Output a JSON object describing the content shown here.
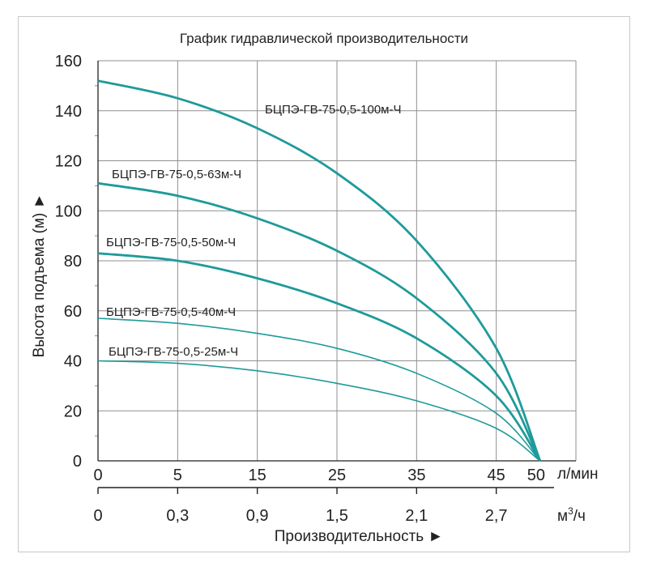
{
  "chart_data": {
    "type": "line",
    "title": "График гидравлической производительности",
    "ylabel": "Высота подъема (м) ►",
    "xlabel": "Производительность ►",
    "xunit_primary": "л/мин",
    "xunit_secondary_base": "м",
    "xunit_secondary_sup": "3",
    "xunit_secondary_tail": "/ч",
    "ylim": [
      0,
      160
    ],
    "yticks": [
      "160",
      "140",
      "120",
      "100",
      "80",
      "60",
      "40",
      "20",
      "0"
    ],
    "xlim": [
      0,
      55
    ],
    "xticks_primary": [
      "0",
      "5",
      "15",
      "25",
      "35",
      "45",
      "50"
    ],
    "xticks_primary_values": [
      0,
      10,
      20,
      30,
      40,
      50,
      55
    ],
    "xticks_secondary": [
      "0",
      "0,3",
      "0,9",
      "1,5",
      "2,1",
      "2,7"
    ],
    "grid": true,
    "series": [
      {
        "name": "БЦПЭ-ГВ-75-0,5-100м-Ч",
        "x": [
          0,
          10,
          20,
          30,
          40,
          50,
          55.5
        ],
        "y": [
          152,
          145,
          133,
          115,
          88,
          45,
          0
        ]
      },
      {
        "name": "БЦПЭ-ГВ-75-0,5-63м-Ч",
        "x": [
          0,
          10,
          20,
          30,
          40,
          50,
          55.5
        ],
        "y": [
          111,
          106,
          97,
          84,
          65,
          35,
          0
        ]
      },
      {
        "name": "БЦПЭ-ГВ-75-0,5-50м-Ч",
        "x": [
          0,
          10,
          20,
          30,
          40,
          50,
          55.5
        ],
        "y": [
          83,
          80,
          73,
          63,
          49,
          26,
          0
        ]
      },
      {
        "name": "БЦПЭ-ГВ-75-0,5-40м-Ч",
        "x": [
          0,
          10,
          20,
          30,
          40,
          50,
          55.5
        ],
        "y": [
          57,
          55,
          51,
          45,
          35,
          19,
          0
        ]
      },
      {
        "name": "БЦПЭ-ГВ-75-0,5-25м-Ч",
        "x": [
          0,
          10,
          20,
          30,
          40,
          50,
          55.5
        ],
        "y": [
          40,
          39,
          36,
          31,
          24,
          13,
          0
        ]
      }
    ],
    "colors": {
      "curve": "#1f9a9a",
      "grid": "#8f8f8f",
      "axis": "#222222"
    }
  }
}
